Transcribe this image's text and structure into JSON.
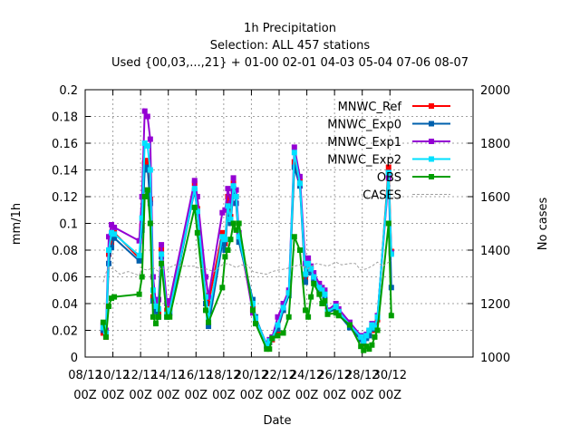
{
  "chart_data": {
    "type": "line",
    "title_lines": [
      "1h Precipitation",
      "Selection: ALL    457 stations",
      "Used {00,03,...,21} + 01-00 02-01 04-03 05-04 07-06 08-07"
    ],
    "xlabel": "Date",
    "ylabel": "mm/1h",
    "y2label": "No cases",
    "xlim": [
      0,
      28
    ],
    "ylim": [
      0,
      0.2
    ],
    "y2lim": [
      1000,
      2000
    ],
    "xticks": [
      {
        "x": 0,
        "label": [
          "08/12",
          "00Z"
        ]
      },
      {
        "x": 2,
        "label": [
          "10/12",
          "00Z"
        ]
      },
      {
        "x": 4,
        "label": [
          "12/12",
          "00Z"
        ]
      },
      {
        "x": 6,
        "label": [
          "14/12",
          "00Z"
        ]
      },
      {
        "x": 8,
        "label": [
          "16/12",
          "00Z"
        ]
      },
      {
        "x": 10,
        "label": [
          "18/12",
          "00Z"
        ]
      },
      {
        "x": 12,
        "label": [
          "20/12",
          "00Z"
        ]
      },
      {
        "x": 14,
        "label": [
          "22/12",
          "00Z"
        ]
      },
      {
        "x": 16,
        "label": [
          "24/12",
          "00Z"
        ]
      },
      {
        "x": 18,
        "label": [
          "26/12",
          "00Z"
        ]
      },
      {
        "x": 20,
        "label": [
          "28/12",
          "00Z"
        ]
      },
      {
        "x": 22,
        "label": [
          "30/12",
          "00Z"
        ]
      }
    ],
    "yticks": [
      "0",
      "0.02",
      "0.04",
      "0.06",
      "0.08",
      "0.1",
      "0.12",
      "0.14",
      "0.16",
      "0.18",
      "0.2"
    ],
    "y2ticks": [
      "1000",
      "1200",
      "1400",
      "1600",
      "1800",
      "2000"
    ],
    "legend_position": "top-right",
    "grid": true,
    "series": [
      {
        "name": "MNWC_Ref",
        "color": "#ff0000",
        "style": "line-points",
        "axis": "y",
        "x": [
          1.3,
          1.5,
          1.7,
          1.9,
          2.1,
          3.9,
          4.1,
          4.3,
          4.5,
          4.7,
          4.9,
          5.1,
          5.3,
          5.5,
          5.9,
          6.1,
          7.9,
          8.1,
          8.7,
          8.9,
          9.9,
          10.1,
          10.3,
          10.5,
          10.7,
          10.9,
          11.1,
          12.1,
          12.3,
          13.1,
          13.3,
          13.5,
          13.9,
          14.3,
          14.7,
          15.1,
          15.5,
          15.9,
          16.1,
          16.3,
          16.5,
          16.9,
          17.1,
          17.3,
          17.5,
          18.1,
          18.3,
          19.1,
          19.9,
          20.1,
          20.3,
          20.5,
          20.7,
          20.9,
          21.1,
          21.9,
          22.1
        ],
        "y": [
          0.018,
          0.015,
          0.077,
          0.086,
          0.093,
          0.074,
          0.098,
          0.145,
          0.147,
          0.118,
          0.045,
          0.037,
          0.033,
          0.08,
          0.035,
          0.037,
          0.13,
          0.111,
          0.046,
          0.04,
          0.093,
          0.085,
          0.12,
          0.105,
          0.13,
          0.12,
          0.089,
          0.036,
          0.03,
          0.008,
          0.011,
          0.013,
          0.02,
          0.035,
          0.048,
          0.146,
          0.132,
          0.058,
          0.071,
          0.065,
          0.06,
          0.053,
          0.05,
          0.048,
          0.035,
          0.038,
          0.034,
          0.024,
          0.014,
          0.01,
          0.015,
          0.018,
          0.023,
          0.02,
          0.028,
          0.142,
          0.079
        ]
      },
      {
        "name": "MNWC_Exp0",
        "color": "#0060ad",
        "style": "line-points",
        "axis": "y",
        "x": [
          1.3,
          1.5,
          1.7,
          1.9,
          2.1,
          3.9,
          4.1,
          4.3,
          4.5,
          4.7,
          4.9,
          5.1,
          5.3,
          5.5,
          5.9,
          6.1,
          7.9,
          8.1,
          8.7,
          8.9,
          9.9,
          10.1,
          10.3,
          10.5,
          10.7,
          10.9,
          11.1,
          12.1,
          12.3,
          13.1,
          13.3,
          13.5,
          13.9,
          14.3,
          14.7,
          15.1,
          15.5,
          15.9,
          16.1,
          16.3,
          16.5,
          16.9,
          17.1,
          17.3,
          17.5,
          18.1,
          18.3,
          19.1,
          19.9,
          20.1,
          20.3,
          20.5,
          20.7,
          20.9,
          21.1,
          21.9,
          22.1
        ],
        "y": [
          0.02,
          0.017,
          0.07,
          0.082,
          0.089,
          0.072,
          0.095,
          0.14,
          0.142,
          0.115,
          0.042,
          0.034,
          0.03,
          0.075,
          0.03,
          0.033,
          0.125,
          0.108,
          0.04,
          0.023,
          0.085,
          0.08,
          0.112,
          0.1,
          0.125,
          0.115,
          0.086,
          0.043,
          0.03,
          0.009,
          0.011,
          0.014,
          0.021,
          0.035,
          0.046,
          0.142,
          0.128,
          0.056,
          0.068,
          0.063,
          0.058,
          0.05,
          0.048,
          0.045,
          0.033,
          0.036,
          0.032,
          0.022,
          0.013,
          0.011,
          0.014,
          0.016,
          0.021,
          0.022,
          0.03,
          0.138,
          0.052
        ]
      },
      {
        "name": "MNWC_Exp1",
        "color": "#9400d3",
        "style": "line-points",
        "axis": "y",
        "x": [
          1.3,
          1.5,
          1.7,
          1.9,
          2.1,
          3.9,
          4.1,
          4.3,
          4.5,
          4.7,
          4.9,
          5.1,
          5.3,
          5.5,
          5.9,
          6.1,
          7.9,
          8.1,
          8.7,
          8.9,
          9.9,
          10.1,
          10.3,
          10.5,
          10.7,
          10.9,
          11.1,
          12.1,
          12.3,
          13.1,
          13.3,
          13.5,
          13.9,
          14.3,
          14.7,
          15.1,
          15.5,
          15.9,
          16.1,
          16.3,
          16.5,
          16.9,
          17.1,
          17.3,
          17.5,
          18.1,
          18.3,
          19.1,
          19.9,
          20.1,
          20.3,
          20.5,
          20.7,
          20.9,
          21.1,
          21.9,
          22.1
        ],
        "y": [
          0.024,
          0.02,
          0.09,
          0.099,
          0.097,
          0.087,
          0.12,
          0.184,
          0.18,
          0.163,
          0.06,
          0.04,
          0.043,
          0.084,
          0.04,
          0.042,
          0.132,
          0.12,
          0.06,
          0.045,
          0.108,
          0.11,
          0.126,
          0.115,
          0.134,
          0.125,
          0.093,
          0.033,
          0.028,
          0.01,
          0.013,
          0.015,
          0.03,
          0.04,
          0.05,
          0.157,
          0.135,
          0.07,
          0.074,
          0.068,
          0.063,
          0.055,
          0.052,
          0.05,
          0.035,
          0.04,
          0.036,
          0.026,
          0.016,
          0.012,
          0.017,
          0.02,
          0.025,
          0.023,
          0.031,
          0.134,
          0.078
        ]
      },
      {
        "name": "MNWC_Exp2",
        "color": "#00e0ff",
        "style": "line-points",
        "axis": "y",
        "x": [
          1.3,
          1.5,
          1.7,
          1.9,
          2.1,
          3.9,
          4.1,
          4.3,
          4.5,
          4.7,
          4.9,
          5.1,
          5.3,
          5.5,
          5.9,
          6.1,
          7.9,
          8.1,
          8.7,
          8.9,
          9.9,
          10.1,
          10.3,
          10.5,
          10.7,
          10.9,
          11.1,
          12.1,
          12.3,
          13.1,
          13.3,
          13.5,
          13.9,
          14.3,
          14.7,
          15.1,
          15.5,
          15.9,
          16.1,
          16.3,
          16.5,
          16.9,
          17.1,
          17.3,
          17.5,
          18.1,
          18.3,
          19.1,
          19.9,
          20.1,
          20.3,
          20.5,
          20.7,
          20.9,
          21.1,
          21.9,
          22.1
        ],
        "y": [
          0.022,
          0.018,
          0.08,
          0.093,
          0.092,
          0.076,
          0.104,
          0.16,
          0.158,
          0.14,
          0.05,
          0.038,
          0.036,
          0.077,
          0.032,
          0.035,
          0.126,
          0.109,
          0.045,
          0.03,
          0.09,
          0.088,
          0.113,
          0.103,
          0.128,
          0.12,
          0.09,
          0.04,
          0.029,
          0.009,
          0.012,
          0.014,
          0.024,
          0.037,
          0.048,
          0.153,
          0.13,
          0.062,
          0.07,
          0.066,
          0.06,
          0.052,
          0.05,
          0.047,
          0.034,
          0.038,
          0.034,
          0.024,
          0.015,
          0.012,
          0.016,
          0.02,
          0.024,
          0.022,
          0.03,
          0.138,
          0.077
        ]
      },
      {
        "name": "OBS",
        "color": "#009e00",
        "style": "line-points",
        "axis": "y",
        "x": [
          1.3,
          1.5,
          1.7,
          1.9,
          2.1,
          3.9,
          4.1,
          4.3,
          4.5,
          4.7,
          4.9,
          5.1,
          5.3,
          5.5,
          5.9,
          6.1,
          7.9,
          8.1,
          8.7,
          8.9,
          9.9,
          10.1,
          10.3,
          10.5,
          10.7,
          10.9,
          11.1,
          12.1,
          12.3,
          13.1,
          13.3,
          13.5,
          13.9,
          14.3,
          14.7,
          15.1,
          15.5,
          15.9,
          16.1,
          16.3,
          16.5,
          16.9,
          17.1,
          17.3,
          17.5,
          18.1,
          18.3,
          19.1,
          19.9,
          20.1,
          20.3,
          20.5,
          20.7,
          20.9,
          21.1,
          21.9,
          22.1
        ],
        "y": [
          0.026,
          0.015,
          0.038,
          0.044,
          0.045,
          0.047,
          0.06,
          0.12,
          0.125,
          0.1,
          0.03,
          0.025,
          0.03,
          0.07,
          0.03,
          0.03,
          0.112,
          0.093,
          0.035,
          0.026,
          0.052,
          0.075,
          0.08,
          0.088,
          0.1,
          0.095,
          0.1,
          0.035,
          0.025,
          0.006,
          0.006,
          0.014,
          0.016,
          0.018,
          0.03,
          0.09,
          0.08,
          0.035,
          0.03,
          0.045,
          0.055,
          0.047,
          0.04,
          0.042,
          0.032,
          0.033,
          0.031,
          0.024,
          0.008,
          0.005,
          0.008,
          0.006,
          0.009,
          0.015,
          0.02,
          0.1,
          0.031
        ]
      },
      {
        "name": "CASES",
        "color": "#a0a0a0",
        "style": "dashed",
        "axis": "y2",
        "x": [
          1.3,
          1.5,
          1.7,
          2.1,
          2.5,
          3.1,
          3.9,
          4.1,
          4.5,
          4.9,
          5.3,
          5.5,
          5.9,
          6.1,
          6.5,
          7.1,
          7.9,
          8.3,
          8.7,
          9.3,
          9.9,
          10.3,
          10.9,
          11.3,
          11.5,
          11.7,
          12.1,
          12.5,
          13.1,
          13.5,
          13.9,
          14.5,
          15.1,
          15.5,
          16.1,
          16.3,
          16.7,
          17.1,
          17.5,
          18.1,
          18.5,
          19.1,
          19.5,
          19.9,
          20.3,
          20.7,
          21.1,
          21.5,
          21.9,
          22.1
        ],
        "y": [
          1280,
          1315,
          1335,
          1328,
          1310,
          1320,
          1305,
          1330,
          1325,
          1335,
          1320,
          1335,
          1325,
          1335,
          1345,
          1340,
          1340,
          1330,
          1330,
          1320,
          1345,
          1350,
          1335,
          1345,
          1340,
          1345,
          1320,
          1315,
          1310,
          1320,
          1325,
          1330,
          1340,
          1345,
          1330,
          1340,
          1350,
          1345,
          1340,
          1355,
          1345,
          1350,
          1350,
          1325,
          1330,
          1340,
          1355,
          1340,
          1355,
          1360
        ]
      }
    ]
  }
}
